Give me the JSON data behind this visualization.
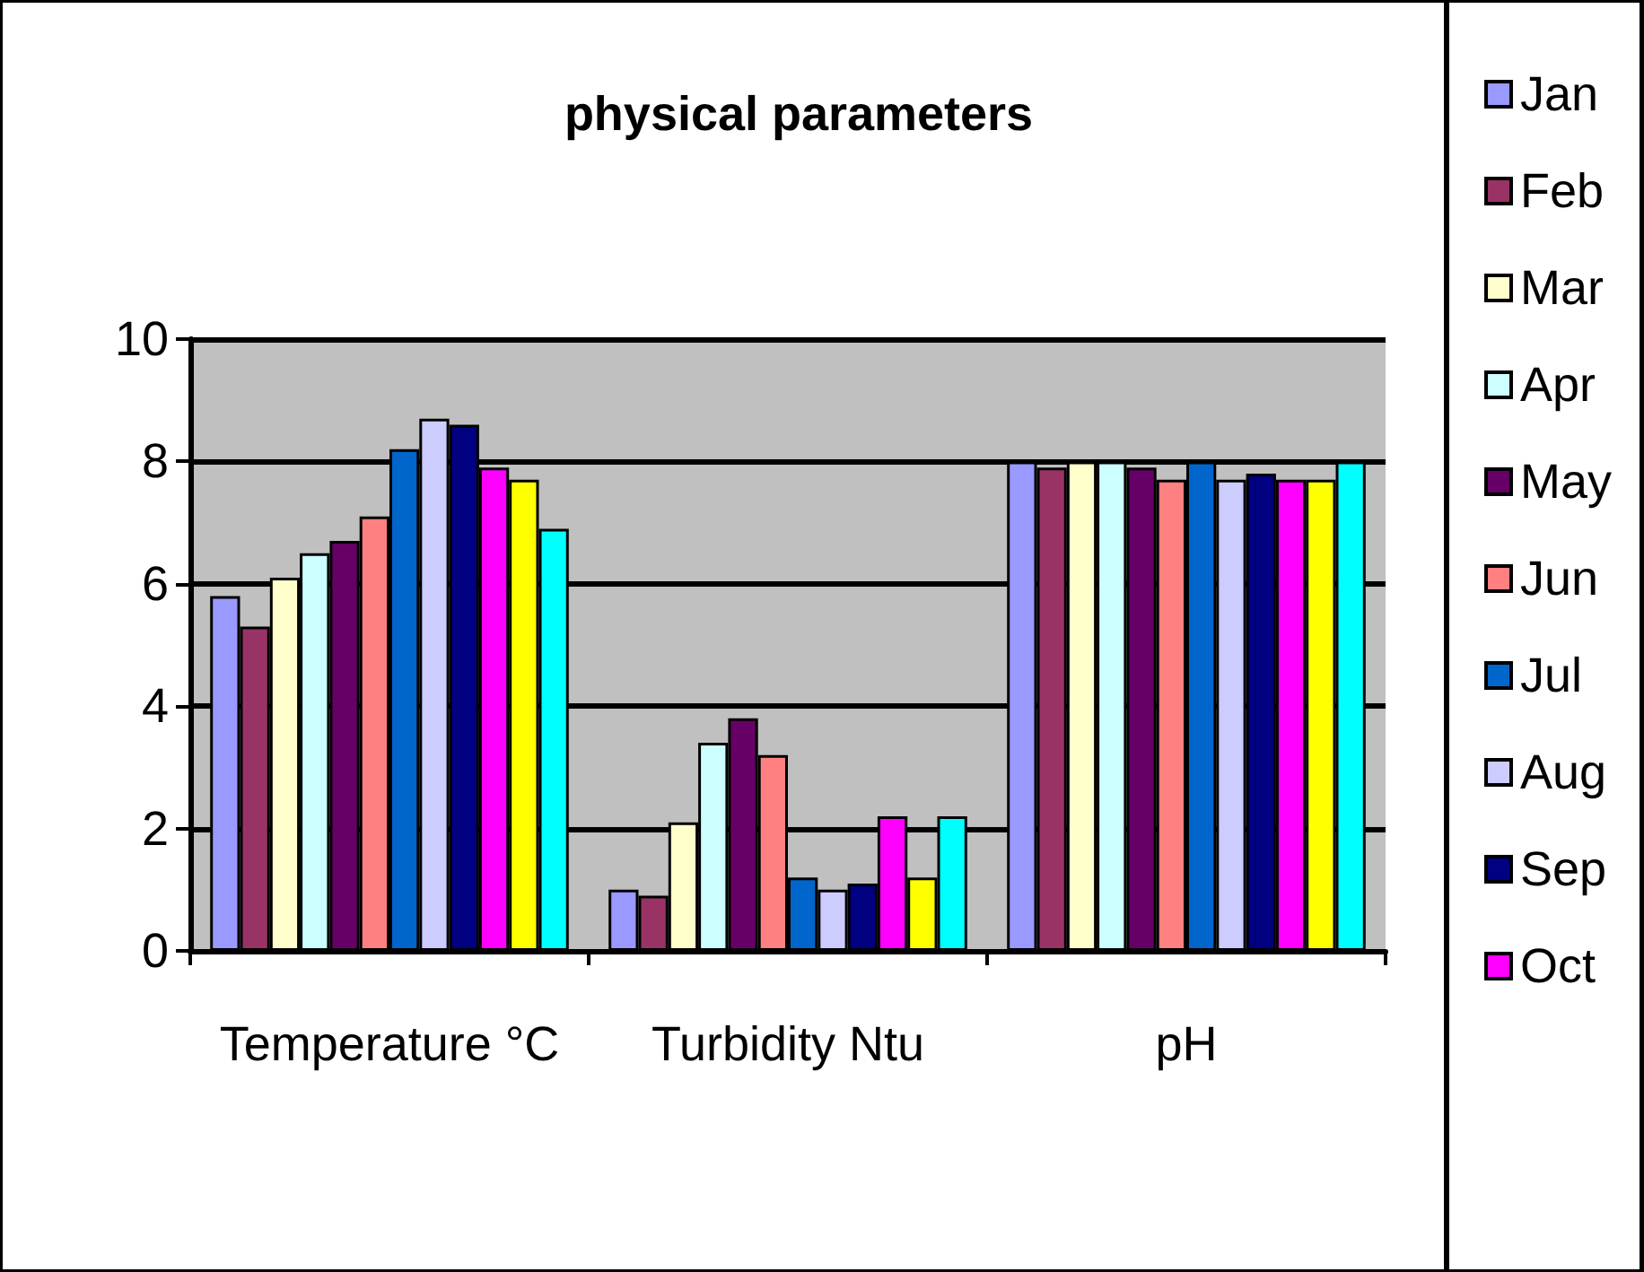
{
  "chart_data": {
    "type": "bar",
    "title": "physical parameters",
    "categories": [
      "Temperature °C",
      "Turbidity Ntu",
      "pH"
    ],
    "series": [
      {
        "name": "Jan",
        "color": "#9999ff",
        "values": [
          5.8,
          1.0,
          8.0
        ]
      },
      {
        "name": "Feb",
        "color": "#993366",
        "values": [
          5.3,
          0.9,
          7.9
        ]
      },
      {
        "name": "Mar",
        "color": "#ffffcc",
        "values": [
          6.1,
          2.1,
          8.0
        ]
      },
      {
        "name": "Apr",
        "color": "#ccffff",
        "values": [
          6.5,
          3.4,
          8.0
        ]
      },
      {
        "name": "May",
        "color": "#660066",
        "values": [
          6.7,
          3.8,
          7.9
        ]
      },
      {
        "name": "Jun",
        "color": "#ff8080",
        "values": [
          7.1,
          3.2,
          7.7
        ]
      },
      {
        "name": "Jul",
        "color": "#0066cc",
        "values": [
          8.2,
          1.2,
          8.0
        ]
      },
      {
        "name": "Aug",
        "color": "#ccccff",
        "values": [
          8.7,
          1.0,
          7.7
        ]
      },
      {
        "name": "Sep",
        "color": "#000080",
        "values": [
          8.6,
          1.1,
          7.8
        ]
      },
      {
        "name": "Oct",
        "color": "#ff00ff",
        "values": [
          7.9,
          2.2,
          7.7
        ]
      },
      {
        "color": "#ffff00",
        "values": [
          7.7,
          1.2,
          7.7
        ]
      },
      {
        "color": "#00ffff",
        "values": [
          6.9,
          2.2,
          8.0
        ]
      }
    ],
    "ylim": [
      0,
      10
    ],
    "yticks": [
      0,
      2,
      4,
      6,
      8,
      10
    ],
    "grid": "y",
    "legend": "right"
  }
}
